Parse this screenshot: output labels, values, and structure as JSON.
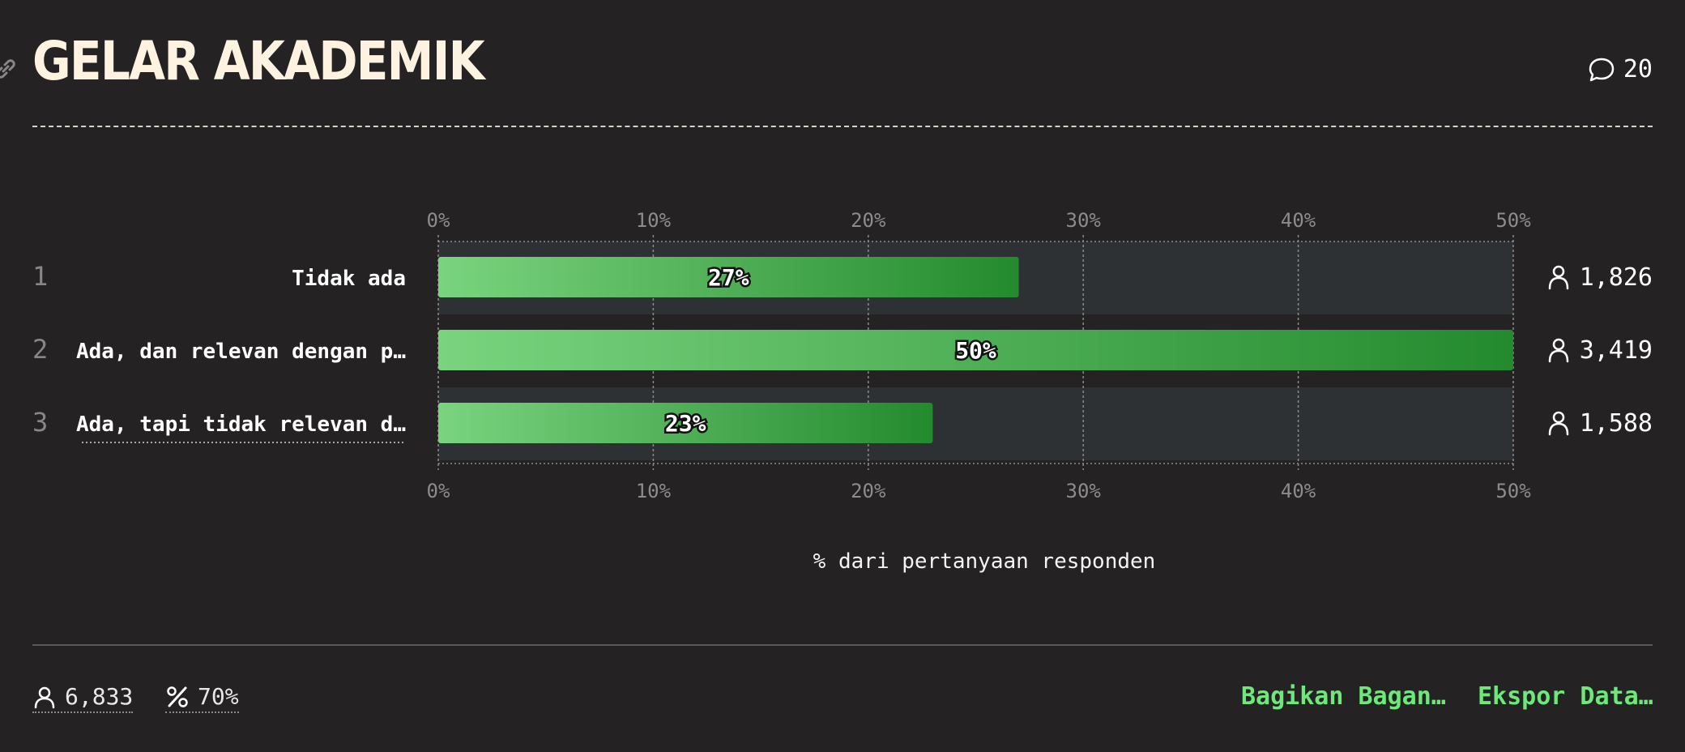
{
  "header": {
    "title": "GELAR AKADEMIK",
    "comment_count": "20"
  },
  "footer": {
    "respondents": "6,833",
    "percent": "70%",
    "share_label": "Bagikan Bagan…",
    "export_label": "Ekspor Data…"
  },
  "colors": {
    "bar_start": "#7ad47f",
    "bar_end": "#248a2e",
    "accent": "#6ee87a",
    "track": "#2d3133",
    "background": "#252223"
  },
  "chart_data": {
    "type": "bar",
    "orientation": "horizontal",
    "xlabel": "% dari pertanyaan responden",
    "xlim": [
      0,
      50
    ],
    "xticks": [
      "0%",
      "10%",
      "20%",
      "30%",
      "40%",
      "50%"
    ],
    "grid": true,
    "rows": [
      {
        "rank": "1",
        "label": "Tidak ada",
        "value": 27,
        "value_label": "27%",
        "count": "1,826"
      },
      {
        "rank": "2",
        "label": "Ada, dan relevan dengan p…",
        "value": 50,
        "value_label": "50%",
        "count": "3,419"
      },
      {
        "rank": "3",
        "label": "Ada, tapi tidak relevan d…",
        "value": 23,
        "value_label": "23%",
        "count": "1,588"
      }
    ]
  }
}
